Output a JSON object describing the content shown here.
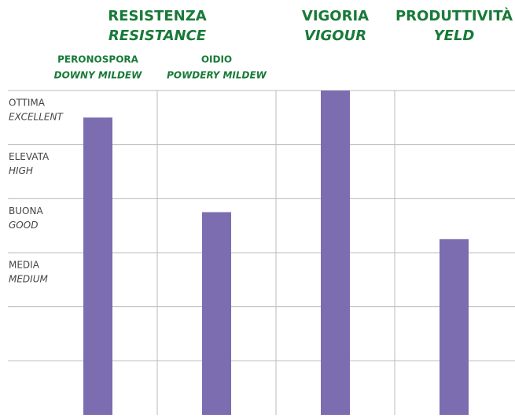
{
  "chart_data": {
    "type": "bar",
    "groups": [
      {
        "name": "RESISTENZA",
        "translation": "RESISTANCE",
        "span": 2
      },
      {
        "name": "VIGORIA",
        "translation": "VIGOUR",
        "span": 1
      },
      {
        "name": "PRODUTTIVITÀ",
        "translation": "YELD",
        "span": 1
      }
    ],
    "categories": [
      "PERONOSPORA",
      "OIDIO",
      null,
      null
    ],
    "category_translations": [
      "DOWNY MILDEW",
      "POWDERY MILDEW",
      null,
      null
    ],
    "values": [
      5.5,
      3.75,
      6,
      3.25
    ],
    "color": "#7b6db0",
    "title_color": "#187a38",
    "ylim": [
      0,
      6
    ],
    "yticks": [
      {
        "value": 6,
        "label": "OTTIMA",
        "sublabel": "EXCELLENT"
      },
      {
        "value": 5,
        "label": "ELEVATA",
        "sublabel": "HIGH"
      },
      {
        "value": 4,
        "label": "BUONA",
        "sublabel": "GOOD"
      },
      {
        "value": 3,
        "label": "MEDIA",
        "sublabel": "MEDIUM"
      },
      {
        "value": 2,
        "label": null,
        "sublabel": null
      },
      {
        "value": 1,
        "label": null,
        "sublabel": null
      }
    ],
    "grid": true
  }
}
